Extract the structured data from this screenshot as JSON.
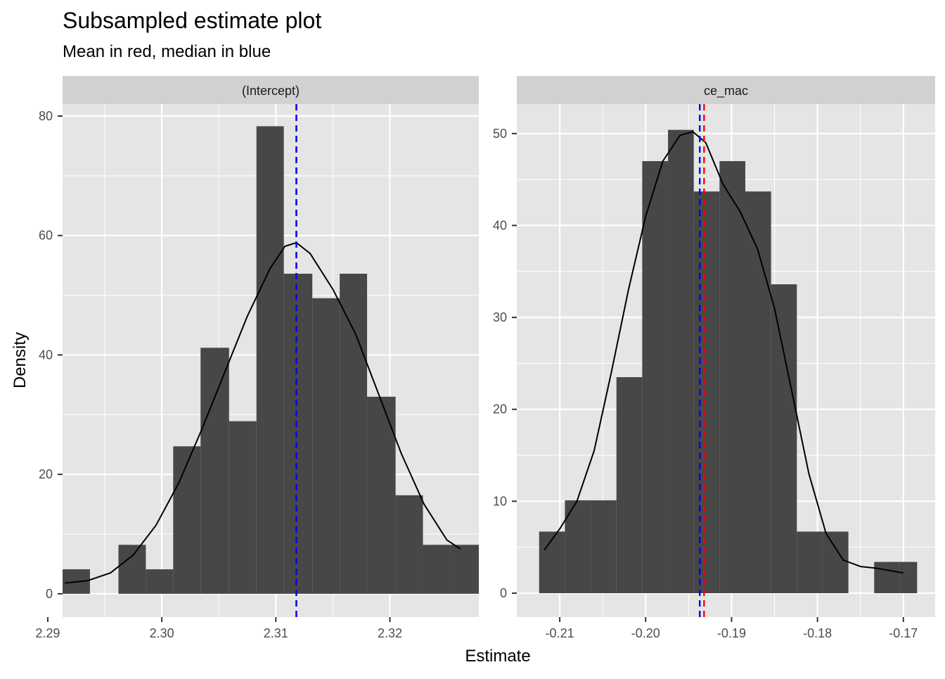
{
  "title": "Subsampled estimate plot",
  "subtitle": "Mean in red, median in blue",
  "xlabel": "Estimate",
  "ylabel": "Density",
  "colors": {
    "panel_bg": "#e5e5e5",
    "strip_bg": "#d1d1d1",
    "grid": "#ffffff",
    "bar": "#474747",
    "density_line": "#000000",
    "mean_line": "#ff0000",
    "median_line": "#0000ff",
    "tick": "#333333"
  },
  "chart_data": [
    {
      "type": "bar",
      "facet": "(Intercept)",
      "xlim": [
        2.2913,
        2.3278
      ],
      "ylim": [
        -3.9,
        82.0
      ],
      "x_ticks": [
        2.29,
        2.3,
        2.31,
        2.32
      ],
      "x_tick_labels": [
        "2.29",
        "2.30",
        "2.31",
        "2.32"
      ],
      "y_ticks": [
        0,
        20,
        40,
        60,
        80
      ],
      "y_tick_labels": [
        "0",
        "20",
        "40",
        "60",
        "80"
      ],
      "bins": [
        {
          "x0": 2.2913,
          "x1": 2.2937,
          "density": 4.1
        },
        {
          "x0": 2.2937,
          "x1": 2.2962,
          "density": 0
        },
        {
          "x0": 2.2962,
          "x1": 2.2986,
          "density": 8.2
        },
        {
          "x0": 2.2986,
          "x1": 2.301,
          "density": 4.1
        },
        {
          "x0": 2.301,
          "x1": 2.3034,
          "density": 24.7
        },
        {
          "x0": 2.3034,
          "x1": 2.3059,
          "density": 41.2
        },
        {
          "x0": 2.3059,
          "x1": 2.3083,
          "density": 28.9
        },
        {
          "x0": 2.3083,
          "x1": 2.3107,
          "density": 78.3
        },
        {
          "x0": 2.3107,
          "x1": 2.3132,
          "density": 53.6
        },
        {
          "x0": 2.3132,
          "x1": 2.3156,
          "density": 49.5
        },
        {
          "x0": 2.3156,
          "x1": 2.318,
          "density": 53.6
        },
        {
          "x0": 2.318,
          "x1": 2.3205,
          "density": 33.0
        },
        {
          "x0": 2.3205,
          "x1": 2.3229,
          "density": 16.5
        },
        {
          "x0": 2.3229,
          "x1": 2.3253,
          "density": 8.2
        },
        {
          "x0": 2.3253,
          "x1": 2.3278,
          "density": 8.2
        }
      ],
      "density_curve": [
        [
          2.2915,
          1.8
        ],
        [
          2.2935,
          2.2
        ],
        [
          2.2955,
          3.5
        ],
        [
          2.2975,
          6.5
        ],
        [
          2.2995,
          11.5
        ],
        [
          2.3015,
          18.6
        ],
        [
          2.3035,
          27.5
        ],
        [
          2.3055,
          37.0
        ],
        [
          2.3075,
          46.5
        ],
        [
          2.3095,
          54.5
        ],
        [
          2.3108,
          58.2
        ],
        [
          2.3118,
          58.8
        ],
        [
          2.313,
          57.0
        ],
        [
          2.315,
          51.0
        ],
        [
          2.317,
          43.5
        ],
        [
          2.319,
          33.5
        ],
        [
          2.321,
          23.5
        ],
        [
          2.323,
          15.0
        ],
        [
          2.325,
          9.0
        ],
        [
          2.3262,
          7.5
        ]
      ],
      "mean": 2.3118,
      "median": 2.3118
    },
    {
      "type": "bar",
      "facet": "ce_mac",
      "xlim": [
        -0.215,
        -0.1663
      ],
      "ylim": [
        -2.6,
        53.2
      ],
      "x_ticks": [
        -0.21,
        -0.2,
        -0.19,
        -0.18,
        -0.17
      ],
      "x_tick_labels": [
        "-0.21",
        "-0.20",
        "-0.19",
        "-0.18",
        "-0.17"
      ],
      "y_ticks": [
        0,
        10,
        20,
        30,
        40,
        50
      ],
      "y_tick_labels": [
        "0",
        "10",
        "20",
        "30",
        "40",
        "50"
      ],
      "bins": [
        {
          "x0": -0.2124,
          "x1": -0.2094,
          "density": 6.7
        },
        {
          "x0": -0.2094,
          "x1": -0.2064,
          "density": 10.1
        },
        {
          "x0": -0.2064,
          "x1": -0.2034,
          "density": 10.1
        },
        {
          "x0": -0.2034,
          "x1": -0.2004,
          "density": 23.5
        },
        {
          "x0": -0.2004,
          "x1": -0.1974,
          "density": 47.0
        },
        {
          "x0": -0.1974,
          "x1": -0.1944,
          "density": 50.4
        },
        {
          "x0": -0.1944,
          "x1": -0.1914,
          "density": 43.7
        },
        {
          "x0": -0.1914,
          "x1": -0.1884,
          "density": 47.0
        },
        {
          "x0": -0.1884,
          "x1": -0.1854,
          "density": 43.7
        },
        {
          "x0": -0.1854,
          "x1": -0.1824,
          "density": 33.6
        },
        {
          "x0": -0.1824,
          "x1": -0.1794,
          "density": 6.7
        },
        {
          "x0": -0.1794,
          "x1": -0.1764,
          "density": 6.7
        },
        {
          "x0": -0.1764,
          "x1": -0.1734,
          "density": 0
        },
        {
          "x0": -0.1734,
          "x1": -0.1704,
          "density": 3.4
        },
        {
          "x0": -0.1704,
          "x1": -0.1684,
          "density": 3.4
        }
      ],
      "density_curve": [
        [
          -0.2118,
          4.7
        ],
        [
          -0.21,
          7.0
        ],
        [
          -0.208,
          10.0
        ],
        [
          -0.206,
          15.5
        ],
        [
          -0.204,
          24.0
        ],
        [
          -0.202,
          33.0
        ],
        [
          -0.2,
          41.0
        ],
        [
          -0.198,
          47.0
        ],
        [
          -0.196,
          49.8
        ],
        [
          -0.1945,
          50.2
        ],
        [
          -0.193,
          49.0
        ],
        [
          -0.191,
          44.5
        ],
        [
          -0.189,
          41.5
        ],
        [
          -0.187,
          37.5
        ],
        [
          -0.185,
          31.0
        ],
        [
          -0.183,
          22.0
        ],
        [
          -0.181,
          13.0
        ],
        [
          -0.179,
          6.5
        ],
        [
          -0.177,
          3.6
        ],
        [
          -0.175,
          2.9
        ],
        [
          -0.173,
          2.7
        ],
        [
          -0.17,
          2.2
        ]
      ],
      "mean": -0.1932,
      "median": -0.1937
    }
  ]
}
